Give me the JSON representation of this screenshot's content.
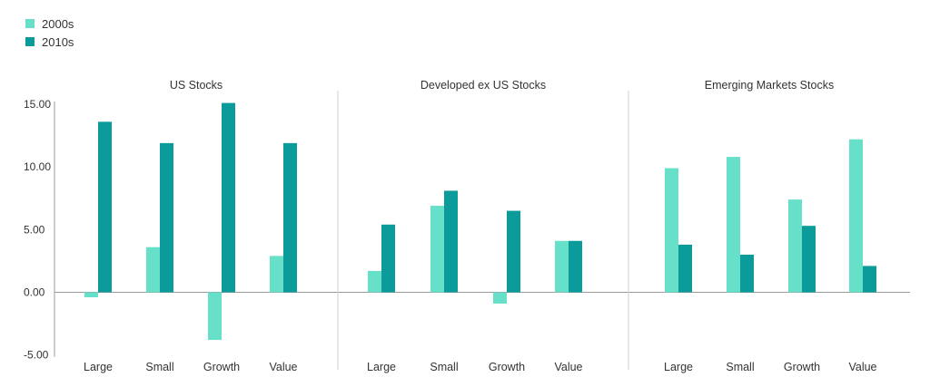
{
  "chart_data": {
    "type": "bar",
    "legend": {
      "placement": "top-left"
    },
    "y_ticks": [
      "15.00",
      "10.00",
      "5.00",
      "0.00",
      "-5.00"
    ],
    "y_tick_values": [
      15,
      10,
      5,
      0,
      -5
    ],
    "ylim": [
      -5,
      15
    ],
    "grid": false,
    "colors": {
      "2000s": "#66e0c8",
      "2010s": "#0b9b9b"
    },
    "series_names": [
      "2000s",
      "2010s"
    ],
    "panels": [
      {
        "title": "US Stocks",
        "categories": [
          "Large",
          "Small",
          "Growth",
          "Value"
        ],
        "series": [
          {
            "name": "2000s",
            "values": [
              -0.4,
              3.6,
              -3.8,
              2.9
            ]
          },
          {
            "name": "2010s",
            "values": [
              13.6,
              11.9,
              15.1,
              11.9
            ]
          }
        ]
      },
      {
        "title": "Developed ex US Stocks",
        "categories": [
          "Large",
          "Small",
          "Growth",
          "Value"
        ],
        "series": [
          {
            "name": "2000s",
            "values": [
              1.7,
              6.9,
              -0.9,
              4.1
            ]
          },
          {
            "name": "2010s",
            "values": [
              5.4,
              8.1,
              6.5,
              4.1
            ]
          }
        ]
      },
      {
        "title": "Emerging Markets Stocks",
        "categories": [
          "Large",
          "Small",
          "Growth",
          "Value"
        ],
        "series": [
          {
            "name": "2000s",
            "values": [
              9.9,
              10.8,
              7.4,
              12.2
            ]
          },
          {
            "name": "2010s",
            "values": [
              3.8,
              3.0,
              5.3,
              2.1
            ]
          }
        ]
      }
    ]
  }
}
